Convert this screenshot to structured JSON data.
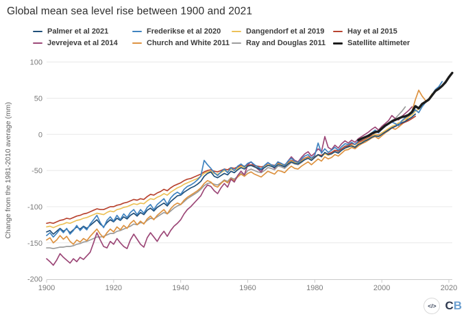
{
  "page": {
    "background": "#ffffff"
  },
  "footer": {
    "embed_icon_label": "</>",
    "logo_c": "C",
    "logo_b": "B"
  },
  "chart_data": {
    "type": "line",
    "title": "Global mean sea level rise between 1900 and 2021",
    "xlabel": "",
    "ylabel": "Change from the 1981-2010 average (mm)",
    "xlim": [
      1900,
      2021
    ],
    "ylim": [
      -200,
      100
    ],
    "x_ticks": [
      1900,
      1920,
      1940,
      1960,
      1980,
      2000,
      2020
    ],
    "y_ticks": [
      100,
      50,
      0,
      -50,
      -100,
      -150,
      -200
    ],
    "grid": "horizontal",
    "grid_color": "#e8e8e8",
    "axis_color": "#c9c9c9",
    "tick_label_color": "#7a7a7a",
    "legend_position": "top",
    "series": [
      {
        "name": "Palmer et al 2021",
        "color": "#1f4e79",
        "width": 1.7,
        "z": 6,
        "start_year": 1900,
        "values": [
          -135,
          -133,
          -138,
          -134,
          -130,
          -134,
          -131,
          -136,
          -132,
          -128,
          -131,
          -127,
          -130,
          -126,
          -122,
          -118,
          -124,
          -128,
          -122,
          -118,
          -121,
          -116,
          -119,
          -114,
          -117,
          -112,
          -109,
          -113,
          -108,
          -111,
          -105,
          -102,
          -106,
          -101,
          -98,
          -95,
          -99,
          -93,
          -89,
          -85,
          -84,
          -80,
          -77,
          -74,
          -72,
          -69,
          -65,
          -58,
          -54,
          -52,
          -58,
          -60,
          -57,
          -54,
          -56,
          -51,
          -53,
          -49,
          -46,
          -48,
          -44,
          -43,
          -45,
          -47,
          -49,
          -46,
          -43,
          -44,
          -46,
          -42,
          -43,
          -45,
          -41,
          -38,
          -40,
          -41,
          -38,
          -35,
          -33,
          -36,
          -32,
          -28,
          -31,
          -25,
          -28,
          -27,
          -24,
          -26,
          -22,
          -19,
          -17,
          -16,
          -18,
          -14,
          -12,
          -9,
          -7,
          -4,
          -2,
          -3,
          0,
          3,
          6,
          9,
          11,
          14,
          16,
          18,
          21,
          24,
          28
        ]
      },
      {
        "name": "Frederikse et al 2020",
        "color": "#3f83c0",
        "width": 1.7,
        "z": 7,
        "start_year": 1900,
        "values": [
          -140,
          -136,
          -142,
          -137,
          -131,
          -136,
          -130,
          -138,
          -133,
          -126,
          -133,
          -128,
          -132,
          -124,
          -118,
          -112,
          -122,
          -129,
          -119,
          -114,
          -120,
          -112,
          -118,
          -110,
          -115,
          -108,
          -104,
          -111,
          -104,
          -109,
          -101,
          -97,
          -104,
          -97,
          -93,
          -89,
          -97,
          -88,
          -83,
          -80,
          -83,
          -76,
          -72,
          -70,
          -67,
          -63,
          -58,
          -36,
          -42,
          -47,
          -53,
          -57,
          -52,
          -48,
          -53,
          -46,
          -50,
          -44,
          -41,
          -45,
          -40,
          -38,
          -42,
          -45,
          -48,
          -43,
          -39,
          -42,
          -44,
          -38,
          -40,
          -43,
          -37,
          -33,
          -37,
          -39,
          -34,
          -30,
          -28,
          -33,
          -29,
          -12,
          -26,
          -20,
          -25,
          -22,
          -18,
          -22,
          -17,
          -13,
          -14,
          -11,
          -14,
          -9,
          -7,
          -4,
          -1,
          2,
          6,
          2,
          7,
          11,
          14,
          17,
          15,
          12,
          19,
          23,
          26,
          29,
          34,
          30,
          38,
          44,
          48,
          55,
          62,
          66,
          73
        ]
      },
      {
        "name": "Dangendorf et al 2019",
        "color": "#ecc158",
        "width": 1.7,
        "z": 5,
        "start_year": 1900,
        "values": [
          -128,
          -127,
          -129,
          -127,
          -125,
          -124,
          -122,
          -123,
          -121,
          -119,
          -118,
          -116,
          -115,
          -113,
          -111,
          -109,
          -110,
          -111,
          -108,
          -106,
          -107,
          -104,
          -103,
          -101,
          -100,
          -98,
          -96,
          -97,
          -95,
          -96,
          -92,
          -89,
          -90,
          -87,
          -85,
          -82,
          -84,
          -80,
          -77,
          -74,
          -72,
          -69,
          -67,
          -65,
          -63,
          -61,
          -58,
          -54,
          -52,
          -51,
          -54,
          -55,
          -53,
          -50,
          -52,
          -48,
          -50,
          -47,
          -44,
          -46,
          -44,
          -43,
          -45,
          -46,
          -48,
          -45,
          -42,
          -43,
          -45,
          -41,
          -42,
          -44,
          -40,
          -37,
          -39,
          -40,
          -37,
          -34,
          -32,
          -35,
          -32,
          -29,
          -31,
          -27,
          -29,
          -27,
          -24,
          -26,
          -22,
          -19,
          -18,
          -15,
          -17,
          -13,
          -11,
          -8,
          -6,
          -3,
          0,
          -2,
          2,
          5,
          8,
          11,
          13,
          16,
          18,
          21,
          24,
          27,
          32,
          35,
          39,
          44,
          49,
          56
        ]
      },
      {
        "name": "Hay et al 2015",
        "color": "#b8432f",
        "width": 1.7,
        "z": 4,
        "start_year": 1900,
        "values": [
          -123,
          -122,
          -123,
          -121,
          -119,
          -118,
          -116,
          -117,
          -115,
          -113,
          -112,
          -110,
          -109,
          -107,
          -105,
          -103,
          -104,
          -104,
          -102,
          -100,
          -100,
          -98,
          -97,
          -95,
          -94,
          -92,
          -90,
          -91,
          -89,
          -90,
          -86,
          -83,
          -84,
          -81,
          -79,
          -76,
          -78,
          -74,
          -71,
          -69,
          -67,
          -64,
          -62,
          -61,
          -59,
          -57,
          -55,
          -52,
          -50,
          -49,
          -51,
          -52,
          -50,
          -48,
          -49,
          -46,
          -47,
          -45,
          -43,
          -44,
          -43,
          -42,
          -43,
          -44,
          -45,
          -44,
          -42,
          -42,
          -43,
          -40,
          -41,
          -42,
          -39,
          -36,
          -38,
          -38,
          -36,
          -33,
          -31,
          -33,
          -31,
          -28,
          -29,
          -26,
          -27,
          -25,
          -22,
          -23,
          -20,
          -17,
          -16,
          -13,
          -14,
          -11,
          -9,
          -7,
          -5,
          -2,
          0,
          -1,
          2,
          4,
          7,
          9,
          11,
          13,
          15,
          17,
          19,
          22,
          25
        ]
      },
      {
        "name": "Jevrejeva et al 2014",
        "color": "#9c4777",
        "width": 1.7,
        "z": 3,
        "start_year": 1900,
        "values": [
          -172,
          -176,
          -181,
          -174,
          -165,
          -170,
          -174,
          -178,
          -172,
          -176,
          -170,
          -173,
          -168,
          -163,
          -150,
          -136,
          -146,
          -155,
          -157,
          -148,
          -152,
          -144,
          -150,
          -155,
          -158,
          -146,
          -138,
          -145,
          -152,
          -156,
          -143,
          -136,
          -142,
          -148,
          -140,
          -134,
          -141,
          -133,
          -127,
          -123,
          -118,
          -110,
          -104,
          -100,
          -95,
          -90,
          -85,
          -76,
          -70,
          -72,
          -78,
          -82,
          -74,
          -68,
          -73,
          -62,
          -66,
          -57,
          -51,
          -56,
          -42,
          -38,
          -44,
          -48,
          -52,
          -45,
          -39,
          -43,
          -47,
          -38,
          -41,
          -45,
          -37,
          -31,
          -36,
          -38,
          -32,
          -27,
          -24,
          -30,
          -26,
          -20,
          -24,
          -3,
          -18,
          -21,
          -15,
          -19,
          -13,
          -9,
          -12,
          -8,
          -11,
          -6,
          -3,
          0,
          3,
          7,
          10,
          6,
          11,
          15,
          19,
          26,
          22,
          20,
          25,
          29,
          33,
          38
        ]
      },
      {
        "name": "Church and White 2011",
        "color": "#dd9240",
        "width": 1.7,
        "z": 2,
        "start_year": 1900,
        "values": [
          -146,
          -143,
          -150,
          -146,
          -140,
          -145,
          -141,
          -148,
          -152,
          -146,
          -149,
          -144,
          -147,
          -141,
          -136,
          -131,
          -138,
          -143,
          -136,
          -131,
          -135,
          -128,
          -132,
          -126,
          -130,
          -123,
          -119,
          -125,
          -120,
          -124,
          -117,
          -113,
          -118,
          -112,
          -108,
          -104,
          -110,
          -103,
          -98,
          -95,
          -97,
          -91,
          -87,
          -84,
          -81,
          -78,
          -74,
          -68,
          -64,
          -66,
          -71,
          -73,
          -68,
          -64,
          -67,
          -61,
          -64,
          -59,
          -55,
          -58,
          -54,
          -52,
          -55,
          -57,
          -59,
          -55,
          -51,
          -53,
          -55,
          -50,
          -51,
          -53,
          -48,
          -44,
          -47,
          -48,
          -44,
          -41,
          -38,
          -42,
          -38,
          -34,
          -37,
          -31,
          -34,
          -32,
          -28,
          -30,
          -26,
          -22,
          -21,
          -18,
          -20,
          -16,
          -13,
          -11,
          -8,
          -5,
          -3,
          -6,
          -2,
          2,
          5,
          9,
          7,
          10,
          14,
          18,
          24,
          32,
          48,
          61,
          53,
          47
        ]
      },
      {
        "name": "Ray and Douglas 2011",
        "color": "#9b9b9b",
        "width": 1.7,
        "z": 1,
        "start_year": 1900,
        "values": [
          -157,
          -157,
          -158,
          -157,
          -156,
          -156,
          -155,
          -155,
          -154,
          -152,
          -151,
          -149,
          -148,
          -146,
          -144,
          -142,
          -142,
          -141,
          -139,
          -137,
          -137,
          -134,
          -133,
          -131,
          -129,
          -127,
          -124,
          -125,
          -122,
          -123,
          -119,
          -116,
          -117,
          -114,
          -111,
          -108,
          -110,
          -106,
          -102,
          -99,
          -97,
          -93,
          -89,
          -86,
          -83,
          -80,
          -76,
          -71,
          -68,
          -67,
          -69,
          -70,
          -67,
          -63,
          -65,
          -60,
          -62,
          -58,
          -54,
          -56,
          -50,
          -48,
          -50,
          -52,
          -53,
          -50,
          -46,
          -47,
          -49,
          -44,
          -45,
          -47,
          -43,
          -39,
          -41,
          -42,
          -39,
          -35,
          -33,
          -36,
          -32,
          -28,
          -30,
          -26,
          -28,
          -26,
          -22,
          -24,
          -20,
          -16,
          -15,
          -12,
          -14,
          -10,
          -7,
          -4,
          -1,
          2,
          5,
          3,
          8,
          12,
          15,
          19,
          22,
          27,
          32,
          38
        ]
      },
      {
        "name": "Satellite altimeter",
        "color": "#1c1c1c",
        "width": 3.4,
        "z": 8,
        "start_year": 1993,
        "values": [
          -8,
          -6,
          -4,
          -2,
          1,
          3,
          4,
          8,
          12,
          15,
          18,
          20,
          22,
          24,
          25,
          27,
          31,
          39,
          36,
          42,
          45,
          48,
          54,
          60,
          63,
          67,
          72,
          79,
          85
        ]
      }
    ]
  }
}
